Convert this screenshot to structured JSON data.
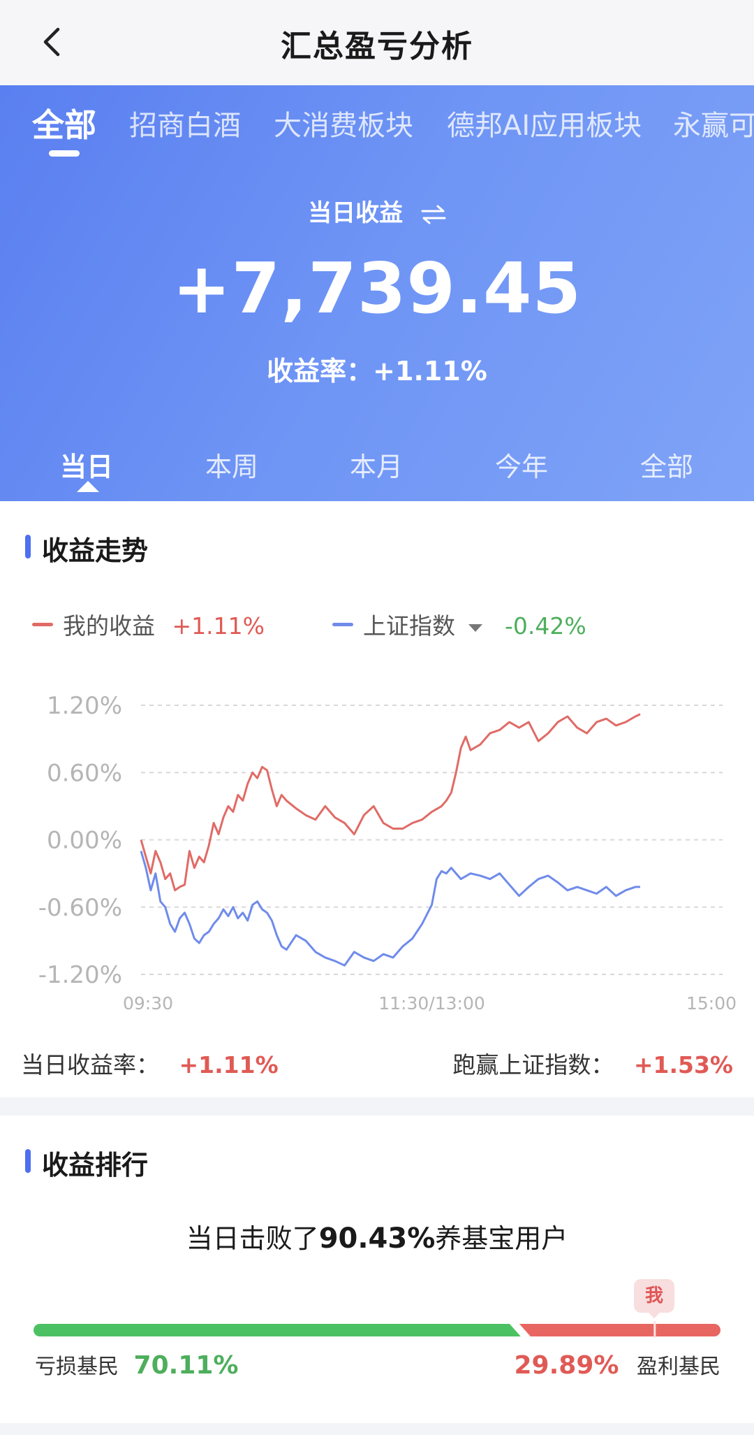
{
  "nav": {
    "title": "汇总盈亏分析",
    "back_icon": "chevron-left-icon"
  },
  "hero": {
    "portfolio_tabs": [
      "全部",
      "招商白酒",
      "大消费板块",
      "德邦AI应用板块",
      "永赢可"
    ],
    "active_portfolio": 0,
    "toggle_label": "当日收益",
    "toggle_icon": "swap-arrows-icon",
    "value": "+7,739.45",
    "rate_label": "收益率：",
    "rate_value": "+1.11%",
    "period_tabs": [
      "当日",
      "本周",
      "本月",
      "今年",
      "全部"
    ],
    "active_period": 0
  },
  "trend": {
    "title": "收益走势",
    "legend": {
      "mine_label": "我的收益",
      "mine_value": "+1.11%",
      "index_label": "上证指数",
      "index_value": "-0.42%",
      "index_dropdown_icon": "triangle-down-icon"
    },
    "stats": {
      "daily_rate_label": "当日收益率：",
      "daily_rate_value": "+1.11%",
      "beat_index_label": "跑赢上证指数：",
      "beat_index_value": "+1.53%"
    }
  },
  "chart_data": {
    "type": "line",
    "x_ticks": [
      "09:30",
      "11:30/13:00",
      "15:00"
    ],
    "y_ticks": [
      "1.20%",
      "0.60%",
      "0.00%",
      "-0.60%",
      "-1.20%"
    ],
    "ylim": [
      -1.2,
      1.2
    ],
    "x_unit": "trading minutes since 09:30 (0-240)",
    "xlim": [
      0,
      240
    ],
    "grid": true,
    "series": [
      {
        "name": "我的收益",
        "color": "#e06b66",
        "points": [
          [
            0,
            0.0
          ],
          [
            2,
            -0.15
          ],
          [
            4,
            -0.3
          ],
          [
            6,
            -0.1
          ],
          [
            8,
            -0.2
          ],
          [
            10,
            -0.35
          ],
          [
            12,
            -0.3
          ],
          [
            14,
            -0.45
          ],
          [
            16,
            -0.42
          ],
          [
            18,
            -0.4
          ],
          [
            20,
            -0.1
          ],
          [
            22,
            -0.25
          ],
          [
            24,
            -0.15
          ],
          [
            26,
            -0.2
          ],
          [
            28,
            -0.05
          ],
          [
            30,
            0.15
          ],
          [
            32,
            0.05
          ],
          [
            34,
            0.2
          ],
          [
            36,
            0.3
          ],
          [
            38,
            0.25
          ],
          [
            40,
            0.4
          ],
          [
            42,
            0.35
          ],
          [
            44,
            0.5
          ],
          [
            46,
            0.6
          ],
          [
            48,
            0.55
          ],
          [
            50,
            0.65
          ],
          [
            52,
            0.62
          ],
          [
            54,
            0.45
          ],
          [
            56,
            0.3
          ],
          [
            58,
            0.4
          ],
          [
            60,
            0.35
          ],
          [
            64,
            0.28
          ],
          [
            68,
            0.22
          ],
          [
            72,
            0.18
          ],
          [
            76,
            0.3
          ],
          [
            80,
            0.2
          ],
          [
            84,
            0.15
          ],
          [
            88,
            0.05
          ],
          [
            92,
            0.22
          ],
          [
            96,
            0.3
          ],
          [
            100,
            0.15
          ],
          [
            104,
            0.1
          ],
          [
            108,
            0.1
          ],
          [
            112,
            0.15
          ],
          [
            116,
            0.18
          ],
          [
            120,
            0.25
          ],
          [
            124,
            0.3
          ],
          [
            126,
            0.35
          ],
          [
            128,
            0.42
          ],
          [
            130,
            0.6
          ],
          [
            132,
            0.82
          ],
          [
            134,
            0.92
          ],
          [
            136,
            0.8
          ],
          [
            140,
            0.85
          ],
          [
            144,
            0.95
          ],
          [
            148,
            0.98
          ],
          [
            152,
            1.05
          ],
          [
            156,
            1.0
          ],
          [
            160,
            1.05
          ],
          [
            164,
            0.88
          ],
          [
            168,
            0.95
          ],
          [
            172,
            1.05
          ],
          [
            176,
            1.1
          ],
          [
            180,
            1.0
          ],
          [
            184,
            0.95
          ],
          [
            188,
            1.05
          ],
          [
            192,
            1.08
          ],
          [
            196,
            1.02
          ],
          [
            200,
            1.05
          ],
          [
            204,
            1.1
          ],
          [
            206,
            1.12
          ]
        ]
      },
      {
        "name": "上证指数",
        "color": "#6f8bea",
        "points": [
          [
            0,
            -0.1
          ],
          [
            2,
            -0.25
          ],
          [
            4,
            -0.45
          ],
          [
            6,
            -0.3
          ],
          [
            8,
            -0.55
          ],
          [
            10,
            -0.6
          ],
          [
            12,
            -0.75
          ],
          [
            14,
            -0.82
          ],
          [
            16,
            -0.7
          ],
          [
            18,
            -0.65
          ],
          [
            20,
            -0.75
          ],
          [
            22,
            -0.88
          ],
          [
            24,
            -0.92
          ],
          [
            26,
            -0.85
          ],
          [
            28,
            -0.82
          ],
          [
            30,
            -0.75
          ],
          [
            32,
            -0.7
          ],
          [
            34,
            -0.62
          ],
          [
            36,
            -0.68
          ],
          [
            38,
            -0.6
          ],
          [
            40,
            -0.7
          ],
          [
            42,
            -0.65
          ],
          [
            44,
            -0.72
          ],
          [
            46,
            -0.58
          ],
          [
            48,
            -0.55
          ],
          [
            50,
            -0.62
          ],
          [
            52,
            -0.65
          ],
          [
            54,
            -0.72
          ],
          [
            56,
            -0.85
          ],
          [
            58,
            -0.95
          ],
          [
            60,
            -0.98
          ],
          [
            64,
            -0.85
          ],
          [
            68,
            -0.9
          ],
          [
            72,
            -1.0
          ],
          [
            76,
            -1.05
          ],
          [
            80,
            -1.08
          ],
          [
            84,
            -1.12
          ],
          [
            88,
            -1.0
          ],
          [
            92,
            -1.05
          ],
          [
            96,
            -1.08
          ],
          [
            100,
            -1.02
          ],
          [
            104,
            -1.05
          ],
          [
            108,
            -0.95
          ],
          [
            112,
            -0.88
          ],
          [
            116,
            -0.75
          ],
          [
            120,
            -0.58
          ],
          [
            122,
            -0.35
          ],
          [
            124,
            -0.28
          ],
          [
            126,
            -0.3
          ],
          [
            128,
            -0.25
          ],
          [
            132,
            -0.35
          ],
          [
            136,
            -0.3
          ],
          [
            140,
            -0.32
          ],
          [
            144,
            -0.35
          ],
          [
            148,
            -0.3
          ],
          [
            152,
            -0.4
          ],
          [
            156,
            -0.5
          ],
          [
            160,
            -0.42
          ],
          [
            164,
            -0.35
          ],
          [
            168,
            -0.32
          ],
          [
            172,
            -0.38
          ],
          [
            176,
            -0.45
          ],
          [
            180,
            -0.42
          ],
          [
            184,
            -0.45
          ],
          [
            188,
            -0.48
          ],
          [
            192,
            -0.42
          ],
          [
            196,
            -0.5
          ],
          [
            200,
            -0.45
          ],
          [
            204,
            -0.42
          ],
          [
            206,
            -0.42
          ]
        ]
      }
    ]
  },
  "rank": {
    "title": "收益排行",
    "text_prefix": "当日击败了",
    "text_highlight": "90.43%",
    "text_suffix": "养基宝用户",
    "me_label": "我",
    "loss_label": "亏损基民",
    "loss_pct": "70.11%",
    "loss_fraction": 0.7011,
    "profit_pct": "29.89%",
    "profit_label": "盈利基民",
    "profit_fraction": 0.2989,
    "user_percentile": 0.9043,
    "colors": {
      "loss": "#4cc163",
      "profit": "#e86662"
    }
  }
}
